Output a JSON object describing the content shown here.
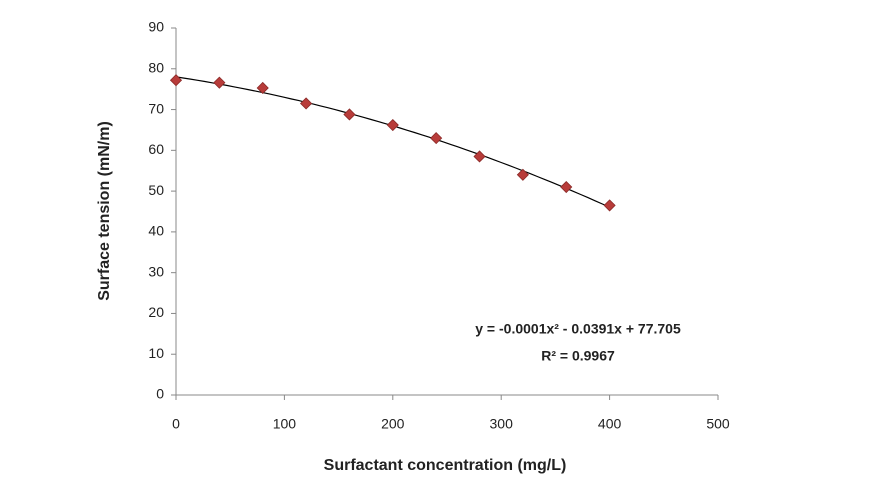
{
  "chart_data": {
    "type": "scatter",
    "x_label": "Surfactant concentration (mg/L)",
    "y_label": "Surface tension (mN/m)",
    "x": [
      0,
      40,
      80,
      120,
      160,
      200,
      240,
      280,
      320,
      360,
      400
    ],
    "values": [
      77.2,
      76.6,
      75.3,
      71.5,
      68.8,
      66.2,
      63,
      58.5,
      54,
      51,
      46.5
    ],
    "color": "#b83c3a",
    "trendline": "polynomial",
    "annotations": [
      "y = -0.0001x² - 0.0391x + 77.705",
      "R² = 0.9967"
    ],
    "xlim": [
      0,
      500
    ],
    "xticks": [
      0,
      100,
      200,
      300,
      400,
      500
    ],
    "ylim": [
      0,
      90
    ],
    "yticks": [
      0,
      10,
      20,
      30,
      40,
      50,
      60,
      70,
      80,
      90
    ],
    "grid": false
  }
}
